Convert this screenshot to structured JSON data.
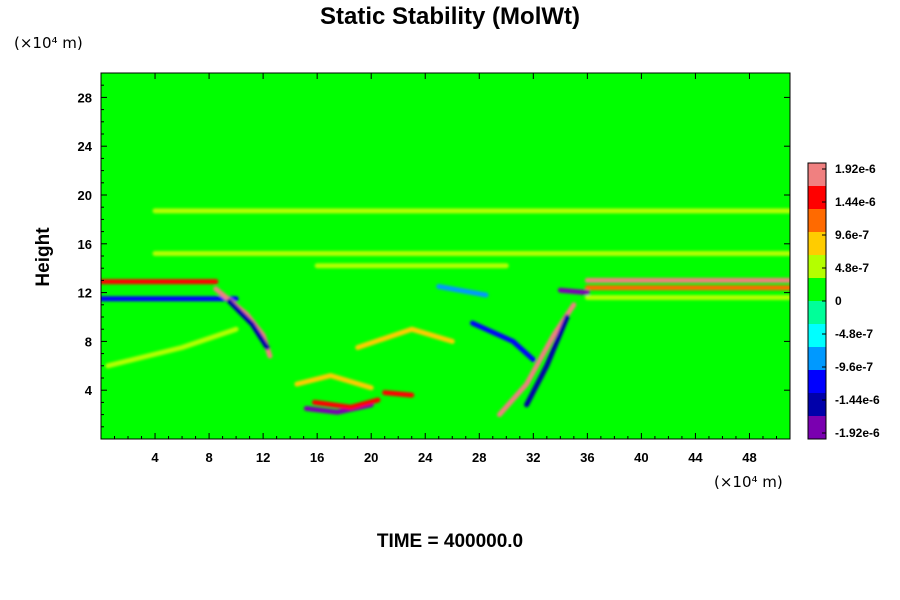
{
  "chart_data": {
    "type": "heatmap",
    "title": "Static Stability (MolWt)",
    "ylabel": "Height",
    "x_unit": "(×10⁴ m)",
    "y_unit": "(×10⁴ m)",
    "footer": "TIME = 400000.0",
    "x_ticks": [
      "4",
      "8",
      "12",
      "16",
      "20",
      "24",
      "28",
      "32",
      "36",
      "40",
      "44",
      "48"
    ],
    "y_ticks": [
      "4",
      "8",
      "12",
      "16",
      "20",
      "24",
      "28"
    ],
    "xlim": [
      0,
      51
    ],
    "ylim": [
      0,
      30
    ],
    "colorbar": {
      "labels": [
        "1.92e-6",
        "1.44e-6",
        "9.6e-7",
        "4.8e-7",
        "0",
        "-4.8e-7",
        "-9.6e-7",
        "-1.44e-6",
        "-1.92e-6"
      ],
      "range": [
        -1.92e-06,
        1.92e-06
      ],
      "colors": [
        "#f08080",
        "#ff0000",
        "#ff6a00",
        "#ffcc00",
        "#b4ff00",
        "#00ff00",
        "#00ff99",
        "#00ffff",
        "#0099ff",
        "#0000ff",
        "#0000aa",
        "#7a00b0"
      ]
    },
    "background_color": "#00ff00",
    "features": [
      {
        "kind": "band",
        "y": 13.0,
        "x_from": 36.0,
        "x_to": 51.0,
        "value": 1.6e-06
      },
      {
        "kind": "band",
        "y": 12.4,
        "x_from": 36.0,
        "x_to": 51.0,
        "value": 1e-06
      },
      {
        "kind": "band",
        "y": 11.6,
        "x_from": 36.0,
        "x_to": 51.0,
        "value": 4.8e-07
      },
      {
        "kind": "band",
        "y": 12.9,
        "x_from": 0.0,
        "x_to": 8.5,
        "value": 1.5e-06
      },
      {
        "kind": "band",
        "y": 11.5,
        "x_from": 0.0,
        "x_to": 10.0,
        "value": -1.2e-06
      },
      {
        "kind": "band",
        "y": 18.7,
        "x_from": 4.0,
        "x_to": 51.0,
        "value": 5e-07
      },
      {
        "kind": "band",
        "y": 15.2,
        "x_from": 4.0,
        "x_to": 51.0,
        "value": 4e-07
      },
      {
        "kind": "band",
        "y": 14.2,
        "x_from": 16.0,
        "x_to": 30.0,
        "value": 6e-07
      },
      {
        "kind": "streak",
        "path": [
          [
            8.5,
            12.3
          ],
          [
            10.8,
            10.2
          ],
          [
            12.0,
            8.5
          ],
          [
            12.5,
            6.8
          ]
        ],
        "value": 1.7e-06
      },
      {
        "kind": "streak",
        "path": [
          [
            9.5,
            11.3
          ],
          [
            11.2,
            9.4
          ],
          [
            12.3,
            7.5
          ]
        ],
        "value": -1.3e-06
      },
      {
        "kind": "streak",
        "path": [
          [
            15.2,
            2.5
          ],
          [
            17.5,
            2.2
          ],
          [
            20.0,
            2.8
          ]
        ],
        "value": -1.6e-06
      },
      {
        "kind": "streak",
        "path": [
          [
            15.8,
            3.0
          ],
          [
            18.5,
            2.6
          ],
          [
            20.5,
            3.2
          ]
        ],
        "value": 1.5e-06
      },
      {
        "kind": "streak",
        "path": [
          [
            21.0,
            3.8
          ],
          [
            23.0,
            3.6
          ]
        ],
        "value": 1.4e-06
      },
      {
        "kind": "streak",
        "path": [
          [
            29.5,
            2.0
          ],
          [
            31.5,
            4.5
          ],
          [
            33.5,
            8.5
          ],
          [
            35.0,
            11.0
          ]
        ],
        "value": 1.6e-06
      },
      {
        "kind": "streak",
        "path": [
          [
            31.5,
            2.8
          ],
          [
            33.0,
            6.0
          ],
          [
            34.5,
            10.0
          ]
        ],
        "value": -1.4e-06
      },
      {
        "kind": "streak",
        "path": [
          [
            27.5,
            9.5
          ],
          [
            30.5,
            8.0
          ],
          [
            32.0,
            6.5
          ]
        ],
        "value": -1e-06
      },
      {
        "kind": "streak",
        "path": [
          [
            19.0,
            7.5
          ],
          [
            23.0,
            9.0
          ],
          [
            26.0,
            8.0
          ]
        ],
        "value": 8e-07
      },
      {
        "kind": "streak",
        "path": [
          [
            14.5,
            4.5
          ],
          [
            17.0,
            5.2
          ],
          [
            20.0,
            4.2
          ]
        ],
        "value": 9e-07
      },
      {
        "kind": "streak",
        "path": [
          [
            34.0,
            12.2
          ],
          [
            36.0,
            12.0
          ]
        ],
        "value": -1.7e-06
      },
      {
        "kind": "streak",
        "path": [
          [
            0.5,
            6.0
          ],
          [
            6.0,
            7.5
          ],
          [
            10.0,
            9.0
          ]
        ],
        "value": 5e-07
      },
      {
        "kind": "streak",
        "path": [
          [
            25.0,
            12.5
          ],
          [
            28.5,
            11.8
          ]
        ],
        "value": -8e-07
      }
    ]
  }
}
